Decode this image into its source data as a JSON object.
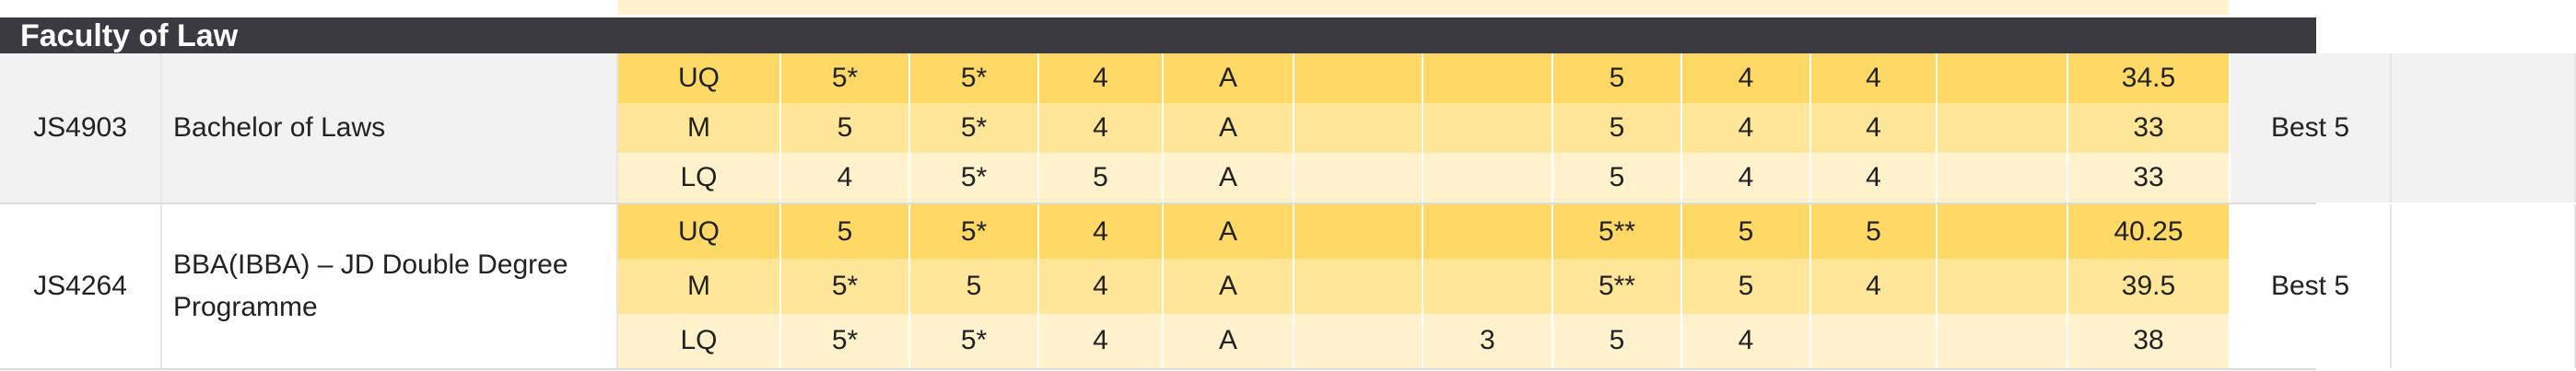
{
  "faculty": {
    "title": "Faculty of Law"
  },
  "columns_count": 13,
  "programmes": [
    {
      "code": "JS4903",
      "name": "Bachelor of Laws",
      "best": "Best 5",
      "rows": [
        {
          "label": "UQ",
          "cells": [
            "5*",
            "5*",
            "4",
            "A",
            "",
            "",
            "5",
            "4",
            "4",
            "",
            "34.5"
          ]
        },
        {
          "label": "M",
          "cells": [
            "5",
            "5*",
            "4",
            "A",
            "",
            "",
            "5",
            "4",
            "4",
            "",
            "33"
          ]
        },
        {
          "label": "LQ",
          "cells": [
            "4",
            "5*",
            "5",
            "A",
            "",
            "",
            "5",
            "4",
            "4",
            "",
            "33"
          ]
        }
      ]
    },
    {
      "code": "JS4264",
      "name": "BBA(IBBA) – JD Double Degree Programme",
      "best": "Best 5",
      "rows": [
        {
          "label": "UQ",
          "cells": [
            "5",
            "5*",
            "4",
            "A",
            "",
            "",
            "5**",
            "5",
            "5",
            "",
            "40.25"
          ]
        },
        {
          "label": "M",
          "cells": [
            "5*",
            "5",
            "4",
            "A",
            "",
            "",
            "5**",
            "5",
            "4",
            "",
            "39.5"
          ]
        },
        {
          "label": "LQ",
          "cells": [
            "5*",
            "5*",
            "4",
            "A",
            "",
            "3",
            "5",
            "4",
            "",
            "",
            "38"
          ]
        }
      ]
    }
  ]
}
